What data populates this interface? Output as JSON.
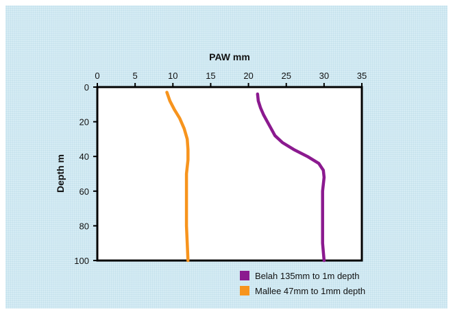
{
  "chart_data": {
    "type": "line",
    "xlabel": "PAW mm",
    "ylabel": "Depth m",
    "xlim": [
      0,
      35
    ],
    "ylim": [
      0,
      100
    ],
    "y_inverted": true,
    "x_axis_position": "top",
    "x_ticks": [
      0,
      5,
      10,
      15,
      20,
      25,
      30,
      35
    ],
    "y_ticks": [
      0,
      20,
      40,
      60,
      80,
      100
    ],
    "grid": false,
    "legend_position": "bottom-right",
    "series": [
      {
        "name": "Belah 135mm to 1m depth",
        "color": "#8b1a8f",
        "x": [
          21.2,
          21.3,
          21.6,
          22.0,
          22.5,
          23.0,
          23.5,
          24.5,
          26.0,
          27.8,
          29.3,
          29.9,
          30.0,
          29.9,
          29.8,
          29.8,
          29.8,
          29.8,
          29.9,
          30.0
        ],
        "y": [
          4,
          8,
          12,
          16,
          20,
          24,
          28,
          32,
          36,
          40,
          44,
          48,
          52,
          56,
          60,
          70,
          80,
          90,
          95,
          100
        ]
      },
      {
        "name": "Mallee 47mm to 1mm depth",
        "color": "#f7941d",
        "x": [
          9.2,
          9.6,
          10.2,
          10.9,
          11.5,
          11.9,
          12.0,
          12.0,
          11.8,
          11.8,
          11.8,
          11.8,
          11.9,
          12.0
        ],
        "y": [
          3,
          8,
          13,
          18,
          24,
          30,
          36,
          42,
          50,
          60,
          70,
          80,
          90,
          100
        ]
      }
    ]
  }
}
